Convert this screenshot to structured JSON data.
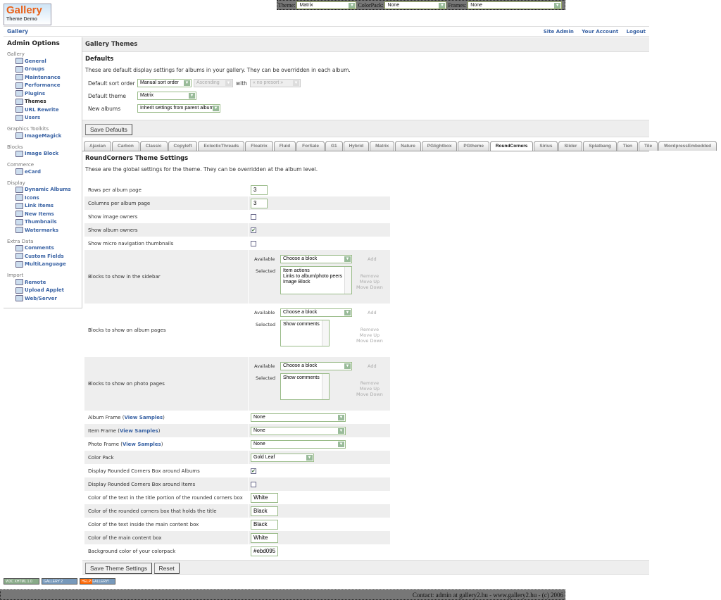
{
  "topbar": {
    "theme_label": "Theme:",
    "theme_value": "Matrix",
    "colorpack_label": "ColorPack:",
    "colorpack_value": "None",
    "frames_label": "Frames:",
    "frames_value": "None"
  },
  "logo": {
    "text": "Gallery",
    "subtext": "Theme Demo"
  },
  "breadcrumb": {
    "home": "Gallery",
    "links": [
      "Site Admin",
      "Your Account",
      "Logout"
    ]
  },
  "sidebar": {
    "title": "Admin Options",
    "groups": [
      {
        "name": "Gallery",
        "items": [
          "General",
          "Groups",
          "Maintenance",
          "Performance",
          "Plugins",
          "Themes",
          "URL Rewrite",
          "Users"
        ],
        "active": "Themes"
      },
      {
        "name": "Graphics Toolkits",
        "items": [
          "ImageMagick"
        ]
      },
      {
        "name": "Blocks",
        "items": [
          "Image Block"
        ]
      },
      {
        "name": "Commerce",
        "items": [
          "eCard"
        ]
      },
      {
        "name": "Display",
        "items": [
          "Dynamic Albums",
          "Icons",
          "Link Items",
          "New Items",
          "Thumbnails",
          "Watermarks"
        ]
      },
      {
        "name": "Extra Data",
        "items": [
          "Comments",
          "Custom Fields",
          "MultiLanguage"
        ]
      },
      {
        "name": "Import",
        "items": [
          "Remote",
          "Upload Applet",
          "Web/Server"
        ]
      }
    ]
  },
  "main": {
    "title": "Gallery Themes",
    "defaults_heading": "Defaults",
    "defaults_desc": "These are default display settings for albums in your gallery. They can be overridden in each album.",
    "sort_label": "Default sort order",
    "sort_value": "Manual sort order",
    "sort_dir": "Ascending",
    "with_label": "with",
    "presort": "« no presort »",
    "theme_label": "Default theme",
    "theme_value": "Matrix",
    "new_albums_label": "New albums",
    "new_albums_value": "Inherit settings from parent album",
    "save_defaults": "Save Defaults",
    "tabs": [
      "Ajaxian",
      "Carbon",
      "Classic",
      "Copyleft",
      "EclecticThreads",
      "Floatrix",
      "Fluid",
      "ForSale",
      "G1",
      "Hybrid",
      "Matrix",
      "Nature",
      "PGlightbox",
      "PGtheme",
      "RoundCorners",
      "Sirius",
      "Slider",
      "Splatbang",
      "Tien",
      "Tile",
      "WordpressEmbedded"
    ],
    "active_tab": "RoundCorners",
    "settings_heading": "RoundCorners Theme Settings",
    "settings_desc": "These are the global settings for the theme. They can be overridden at the album level.",
    "settings": [
      {
        "label": "Rows per album page",
        "type": "text",
        "value": "3"
      },
      {
        "label": "Columns per album page",
        "type": "text",
        "value": "3"
      },
      {
        "label": "Show image owners",
        "type": "check",
        "checked": false
      },
      {
        "label": "Show album owners",
        "type": "check",
        "checked": true
      },
      {
        "label": "Show micro navigation thumbnails",
        "type": "check",
        "checked": false
      },
      {
        "label": "Blocks to show in the sidebar",
        "type": "blocks",
        "available": "Choose a block",
        "selected": [
          "Item actions",
          "Links to album/photo peers",
          "Image Block"
        ]
      },
      {
        "label": "Blocks to show on album pages",
        "type": "blocks",
        "available": "Choose a block",
        "selected": [
          "Show comments"
        ]
      },
      {
        "label": "Blocks to show on photo pages",
        "type": "blocks",
        "available": "Choose a block",
        "selected": [
          "Show comments"
        ]
      },
      {
        "label": "Album Frame",
        "link": "View Samples",
        "type": "select",
        "value": "None"
      },
      {
        "label": "Item Frame",
        "link": "View Samples",
        "type": "select",
        "value": "None"
      },
      {
        "label": "Photo Frame",
        "link": "View Samples",
        "type": "select",
        "value": "None"
      },
      {
        "label": "Color Pack",
        "type": "select-small",
        "value": "Gold Leaf"
      },
      {
        "label": "Display Rounded Corners Box around Albums",
        "type": "check",
        "checked": true
      },
      {
        "label": "Display Rounded Corners Box around Items",
        "type": "check",
        "checked": false
      },
      {
        "label": "Color of the text in the title portion of the rounded corners box",
        "type": "text",
        "value": "White"
      },
      {
        "label": "Color of the rounded corners box that holds the title",
        "type": "text",
        "value": "Black"
      },
      {
        "label": "Color of the text inside the main content box",
        "type": "text",
        "value": "Black"
      },
      {
        "label": "Color of the main content box",
        "type": "text",
        "value": "White"
      },
      {
        "label": "Background color of your colorpack",
        "type": "text",
        "value": "#ebd095"
      }
    ],
    "blocks_labels": {
      "available": "Available",
      "selected": "Selected",
      "add": "Add",
      "remove": "Remove",
      "move_up": "Move Up",
      "move_down": "Move Down"
    },
    "save_settings": "Save Theme Settings",
    "reset": "Reset"
  },
  "badges": [
    "W3C XHTML 1.0",
    "GALLERY 2",
    "HELP GALLERY!"
  ],
  "footer": "Contact: admin at gallery2.hu - www.gallery2.hu - (c) 2006",
  "colors": {
    "link": "#3a63a4",
    "panel": "#eeeeee",
    "bar": "#777777"
  }
}
